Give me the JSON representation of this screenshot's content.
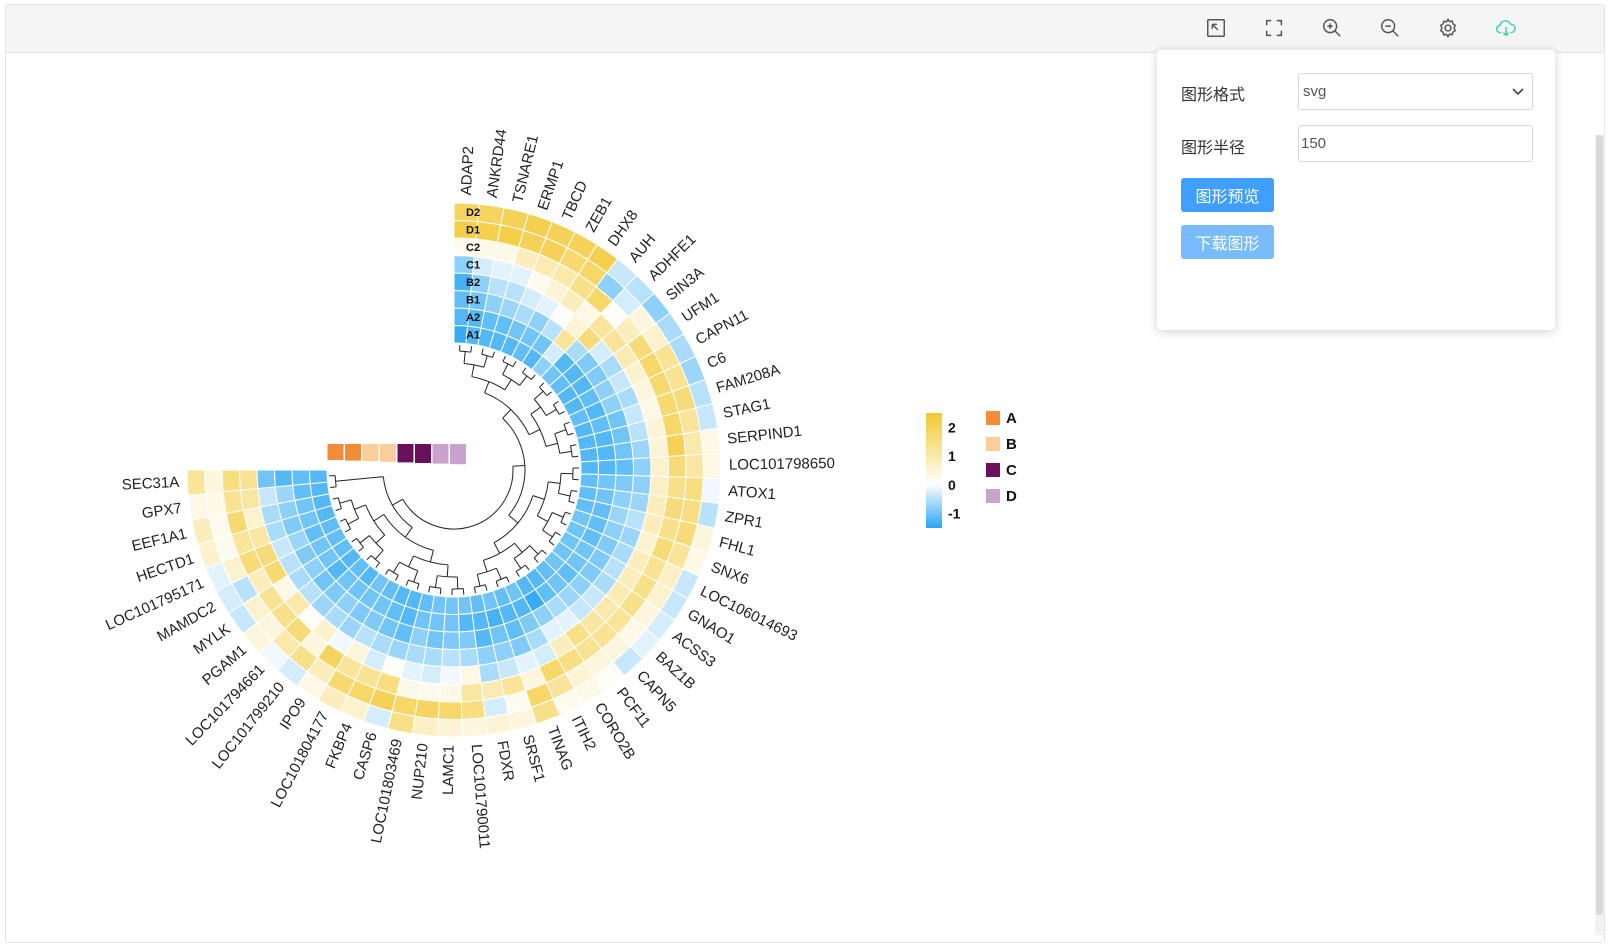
{
  "toolbar": {
    "icons": [
      "exit-fullscreen-icon",
      "fullscreen-icon",
      "zoom-in-icon",
      "zoom-out-icon",
      "gear-icon",
      "cloud-download-icon"
    ]
  },
  "panel": {
    "format_label": "图形格式",
    "format_value": "svg",
    "radius_label": "图形半径",
    "radius_value": "150",
    "preview_button": "图形预览",
    "download_button": "下载图形"
  },
  "chart_data": {
    "type": "heatmap",
    "layout": "circular",
    "tracks": [
      "A1",
      "A2",
      "B1",
      "B2",
      "C1",
      "C2",
      "D1",
      "D2"
    ],
    "genes": [
      "ADAP2",
      "ANKRD44",
      "TSNARE1",
      "ERMP1",
      "TBCD",
      "ZEB1",
      "DHX8",
      "AUH",
      "ADHFE1",
      "SIN3A",
      "UFM1",
      "CAPN11",
      "C6",
      "FAM208A",
      "STAG1",
      "SERPIND1",
      "LOC101798650",
      "ATOX1",
      "ZPR1",
      "FHL1",
      "SNX6",
      "LOC106014693",
      "GNAO1",
      "ACSS3",
      "BAZ1B",
      "CAPN5",
      "PCF11",
      "CORO2B",
      "ITIH2",
      "TINAG",
      "SRSF1",
      "FDXR",
      "LOC101790011",
      "LAMC1",
      "NUP210",
      "LOC101803469",
      "CASP6",
      "FKBP4",
      "LOC101804177",
      "IPO9",
      "LOC101799210",
      "LOC101794661",
      "PGAM1",
      "MYLK",
      "MAMDC2",
      "LOC101795171",
      "HECTD1",
      "EEF1A1",
      "GPX7",
      "SEC31A"
    ],
    "groups": [
      {
        "name": "A",
        "color": "#f28c38"
      },
      {
        "name": "B",
        "color": "#fbcd9a"
      },
      {
        "name": "C",
        "color": "#6a0f5c"
      },
      {
        "name": "D",
        "color": "#c9a3cc"
      }
    ],
    "group_bar_colors": [
      "#f28c38",
      "#f28c38",
      "#fbcd9a",
      "#fbcd9a",
      "#6a0f5c",
      "#6a0f5c",
      "#c9a3cc",
      "#c9a3cc"
    ],
    "colorscale": {
      "min": -1.5,
      "max": 2.5,
      "low": "#29a6f5",
      "mid": "#ffffff",
      "high": "#f3c72d",
      "ticks": [
        2,
        1,
        0,
        -1
      ]
    },
    "values": [
      [
        -1.4,
        -1.2,
        -1.1,
        -1.3,
        -0.8,
        0.2,
        2.2,
        1.9
      ],
      [
        -1.2,
        -1.2,
        -1.0,
        -0.8,
        -0.3,
        0.3,
        2.1,
        1.9
      ],
      [
        -1.2,
        -1.1,
        -0.8,
        -0.5,
        -0.2,
        0.3,
        2.2,
        2.0
      ],
      [
        -1.2,
        -1.1,
        -0.7,
        -0.5,
        -0.2,
        0.8,
        2.0,
        2.1
      ],
      [
        -1.2,
        -1.0,
        -0.6,
        -0.3,
        0.2,
        0.9,
        2.0,
        2.0
      ],
      [
        -1.1,
        -1.0,
        -0.8,
        -0.2,
        0.5,
        1.0,
        1.7,
        2.0
      ],
      [
        -1.2,
        -1.0,
        -0.5,
        0.1,
        0.8,
        1.4,
        1.8,
        2.1
      ],
      [
        -0.8,
        -0.3,
        1.2,
        0.5,
        0.3,
        1.8,
        -0.8,
        -0.4
      ],
      [
        -1.0,
        -1.2,
        -0.6,
        1.6,
        1.2,
        0.1,
        -0.3,
        -0.5
      ],
      [
        -1.1,
        -1.2,
        -0.9,
        -0.3,
        1.2,
        0.8,
        0.4,
        -0.8
      ],
      [
        -1.2,
        -1.2,
        -0.9,
        -0.6,
        0.9,
        1.6,
        0.6,
        -0.6
      ],
      [
        -1.2,
        -1.1,
        -0.8,
        -0.4,
        0.6,
        1.8,
        1.3,
        -0.6
      ],
      [
        -1.1,
        -1.2,
        -0.8,
        -0.6,
        0.4,
        1.7,
        1.3,
        -0.7
      ],
      [
        -1.2,
        -1.1,
        -1.0,
        -0.4,
        0.3,
        1.7,
        1.6,
        -0.5
      ],
      [
        -1.2,
        -1.2,
        -1.0,
        -0.5,
        0.5,
        1.8,
        1.2,
        -0.4
      ],
      [
        -1.2,
        -1.2,
        -1.0,
        -0.7,
        0.5,
        2.0,
        1.0,
        0.3
      ],
      [
        -1.2,
        -1.2,
        -1.1,
        -0.8,
        0.6,
        1.6,
        1.1,
        0.3
      ],
      [
        -1.1,
        -1.0,
        -0.9,
        -0.8,
        0.7,
        1.4,
        1.5,
        -0.1
      ],
      [
        -1.1,
        -1.0,
        -0.8,
        -0.7,
        0.8,
        1.6,
        1.5,
        -0.5
      ],
      [
        -1.1,
        -1.1,
        -0.7,
        -0.5,
        0.8,
        1.4,
        1.6,
        0.4
      ],
      [
        -1.0,
        -1.1,
        -0.8,
        -0.7,
        0.6,
        1.6,
        1.2,
        0.3
      ],
      [
        -1.0,
        -1.1,
        -0.9,
        -0.6,
        0.8,
        1.3,
        0.7,
        -0.4
      ],
      [
        -1.0,
        -1.0,
        -0.9,
        -0.5,
        0.8,
        1.4,
        0.6,
        -0.4
      ],
      [
        -1.0,
        -1.0,
        -0.9,
        -0.6,
        0.9,
        1.4,
        0.4,
        -0.3
      ],
      [
        -1.0,
        -1.1,
        -0.8,
        -0.4,
        1.0,
        1.2,
        0.3,
        -0.2
      ],
      [
        -1.1,
        -1.0,
        -0.7,
        -0.4,
        1.1,
        1.3,
        0.4,
        -0.4
      ],
      [
        -1.2,
        -1.1,
        -0.6,
        -0.2,
        1.4,
        1.3,
        0.4,
        0.1
      ],
      [
        -1.2,
        -1.4,
        -0.8,
        -0.2,
        0.8,
        1.5,
        0.5,
        0.3
      ],
      [
        -1.0,
        -1.2,
        -0.9,
        -0.6,
        -0.3,
        1.8,
        1.2,
        0.2
      ],
      [
        -1.1,
        -1.2,
        -1.1,
        -0.9,
        -0.2,
        0.4,
        1.8,
        1.4
      ],
      [
        -1.0,
        -1.3,
        -1.0,
        -0.8,
        -0.4,
        1.2,
        0.2,
        0.4
      ],
      [
        -1.1,
        -1.2,
        -1.2,
        -0.8,
        -0.6,
        0.9,
        -0.3,
        0.5
      ],
      [
        -1.0,
        -1.2,
        -0.9,
        -0.6,
        0.3,
        1.1,
        1.5,
        0.4
      ],
      [
        -1.0,
        -1.0,
        -0.9,
        -0.5,
        -0.1,
        0.3,
        1.8,
        0.5
      ],
      [
        -1.0,
        -1.0,
        -1.0,
        -0.6,
        -0.3,
        0.2,
        1.9,
        0.7
      ],
      [
        -1.1,
        -1.0,
        -0.8,
        -0.6,
        -0.2,
        0.3,
        1.8,
        1.4
      ],
      [
        -1.2,
        -1.2,
        -1.1,
        -0.7,
        0.1,
        1.5,
        2.0,
        -0.3
      ],
      [
        -1.2,
        -1.1,
        -1.0,
        -0.6,
        -0.3,
        1.3,
        1.8,
        0.6
      ],
      [
        -1.1,
        -1.0,
        -0.9,
        -0.5,
        0.4,
        1.2,
        1.7,
        0.8
      ],
      [
        -1.0,
        -1.0,
        -0.9,
        -0.7,
        -0.1,
        1.9,
        0.8,
        0.3
      ],
      [
        -1.2,
        -1.0,
        -0.8,
        -0.6,
        0.6,
        0.4,
        1.4,
        -0.3
      ],
      [
        -1.1,
        -1.0,
        -0.9,
        -0.7,
        0.1,
        1.6,
        1.0,
        -0.1
      ],
      [
        -1.2,
        -1.2,
        -1.0,
        -0.5,
        1.0,
        1.4,
        0.4,
        0.4
      ],
      [
        -1.1,
        -1.0,
        -0.8,
        -0.6,
        0.3,
        1.3,
        0.6,
        -0.4
      ],
      [
        -1.1,
        -1.0,
        -0.9,
        -0.5,
        1.7,
        0.8,
        -0.5,
        -0.3
      ],
      [
        -1.1,
        -1.1,
        -0.7,
        -0.4,
        1.6,
        1.6,
        0.6,
        -0.2
      ],
      [
        -1.2,
        -1.0,
        -0.9,
        -0.6,
        1.1,
        1.2,
        0.2,
        0.6
      ],
      [
        -1.2,
        -1.0,
        -0.8,
        -0.6,
        0.6,
        1.7,
        0.2,
        0.8
      ],
      [
        -1.2,
        -1.1,
        -0.7,
        -0.4,
        1.1,
        1.3,
        0.3,
        0.3
      ],
      [
        -1.2,
        -1.1,
        -1.2,
        -1.0,
        1.3,
        1.5,
        0.4,
        1.2
      ]
    ]
  }
}
